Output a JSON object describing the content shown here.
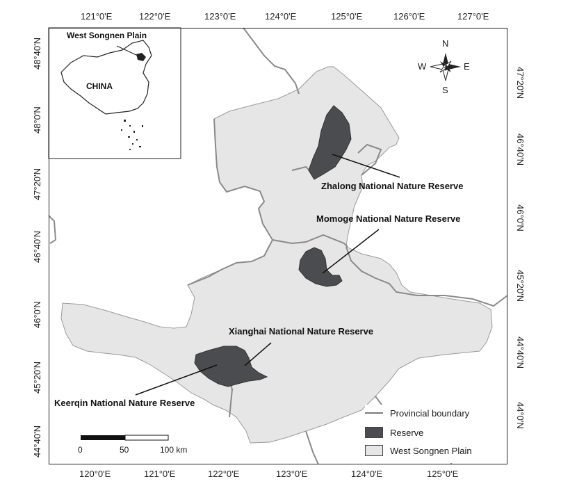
{
  "top_ticks": [
    "121°0'E",
    "122°0'E",
    "123°0'E",
    "124°0'E",
    "125°0'E",
    "126°0'E",
    "127°0'E"
  ],
  "bottom_ticks": [
    "120°0'E",
    "121°0'E",
    "122°0'E",
    "123°0'E",
    "124°0'E",
    "125°0'E"
  ],
  "left_ticks": [
    "48°40'N",
    "48°0'N",
    "47°20'N",
    "46°40'N",
    "46°0'N",
    "45°20'N",
    "44°40'N"
  ],
  "right_ticks": [
    "47°20'N",
    "46°40'N",
    "46°0'N",
    "45°20'N",
    "44°40'N",
    "44°0'N"
  ],
  "inset": {
    "place_label": "West Songnen Plain",
    "country_label": "CHINA"
  },
  "reserves": {
    "zhalong": "Zhalong National Nature Reserve",
    "momoge": "Momoge National Nature Reserve",
    "xianghai": "Xianghai National Nature Reserve",
    "keerqin": "Keerqin National Nature Reserve"
  },
  "compass": {
    "n": "N",
    "s": "S",
    "e": "E",
    "w": "W"
  },
  "legend": {
    "boundary": "Provincial boundary",
    "reserve": "Reserve",
    "plain": "West Songnen Plain"
  },
  "scale_bar": {
    "l0": "0",
    "l1": "50",
    "l2": "100 km"
  },
  "colors": {
    "plain": "#e6e6e6",
    "reserve": "#4a4c50",
    "boundary": "#8a8a8a"
  }
}
